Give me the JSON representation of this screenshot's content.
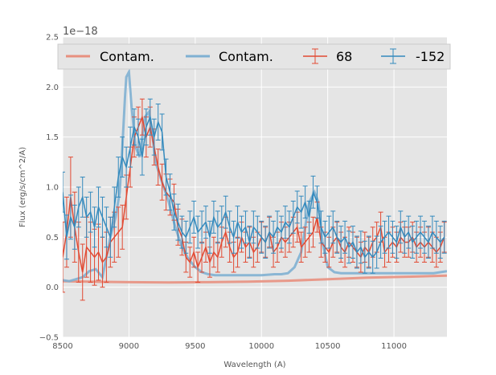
{
  "chart_data": {
    "type": "line",
    "title": "",
    "xlabel": "Wavelength (A)",
    "ylabel": "Flux (erg/s/cm^2/A)",
    "y_offset_label": "1e−18",
    "xlim": [
      8500,
      11400
    ],
    "ylim": [
      -0.5,
      2.5
    ],
    "x_ticks": [
      8500,
      9000,
      9500,
      10000,
      10500,
      11000
    ],
    "x_tick_labels": [
      "8500",
      "9000",
      "9500",
      "10000",
      "10500",
      "11000"
    ],
    "y_ticks": [
      -0.5,
      0.0,
      0.5,
      1.0,
      1.5,
      2.0,
      2.5
    ],
    "y_tick_labels": [
      "−0.5",
      "0.0",
      "0.5",
      "1.0",
      "1.5",
      "2.0",
      "2.5"
    ],
    "grid": true,
    "legend_position": "top",
    "colors": {
      "red": "#e24a33",
      "blue": "#348abd",
      "contam_red": "#e8907f",
      "contam_blue": "#7fb0d2",
      "plot_bg": "#e5e5e5"
    },
    "series": [
      {
        "name": "Contam.",
        "kind": "line",
        "color": "#e8907f",
        "x": [
          8500,
          8700,
          9000,
          9300,
          9600,
          9900,
          10200,
          10500,
          10800,
          11100,
          11400
        ],
        "y": [
          0.06,
          0.055,
          0.05,
          0.048,
          0.05,
          0.055,
          0.065,
          0.08,
          0.095,
          0.105,
          0.115
        ]
      },
      {
        "name": "Contam.",
        "kind": "line",
        "color": "#7fb0d2",
        "x": [
          8500,
          8550,
          8600,
          8650,
          8700,
          8750,
          8800,
          8830,
          8860,
          8900,
          8930,
          8950,
          8970,
          8980,
          9000,
          9020,
          9050,
          9080,
          9100,
          9120,
          9150,
          9170,
          9200,
          9250,
          9300,
          9350,
          9400,
          9450,
          9500,
          9550,
          9600,
          9650,
          9700,
          9800,
          9900,
          10000,
          10100,
          10150,
          10200,
          10250,
          10300,
          10330,
          10360,
          10400,
          10430,
          10460,
          10500,
          10550,
          10600,
          10700,
          10800,
          10900,
          11000,
          11100,
          11200,
          11300,
          11400
        ],
        "y": [
          0.07,
          0.06,
          0.08,
          0.1,
          0.16,
          0.18,
          0.1,
          0.3,
          0.5,
          0.7,
          0.95,
          1.4,
          1.9,
          2.1,
          2.15,
          1.8,
          1.4,
          1.3,
          1.5,
          1.7,
          1.75,
          1.6,
          1.25,
          1.05,
          0.85,
          0.6,
          0.4,
          0.28,
          0.2,
          0.15,
          0.13,
          0.12,
          0.12,
          0.12,
          0.12,
          0.12,
          0.13,
          0.13,
          0.14,
          0.2,
          0.35,
          0.6,
          0.85,
          0.95,
          0.85,
          0.45,
          0.2,
          0.15,
          0.14,
          0.14,
          0.14,
          0.14,
          0.14,
          0.14,
          0.14,
          0.14,
          0.16
        ]
      },
      {
        "name": "68",
        "kind": "errorbar",
        "color": "#e24a33",
        "x": [
          8500,
          8530,
          8560,
          8590,
          8620,
          8650,
          8680,
          8710,
          8740,
          8770,
          8800,
          8830,
          8860,
          8890,
          8920,
          8950,
          8980,
          9010,
          9040,
          9070,
          9100,
          9130,
          9160,
          9190,
          9220,
          9250,
          9280,
          9310,
          9340,
          9370,
          9400,
          9430,
          9460,
          9490,
          9520,
          9550,
          9580,
          9610,
          9640,
          9670,
          9700,
          9730,
          9760,
          9790,
          9820,
          9850,
          9880,
          9910,
          9940,
          9970,
          10000,
          10030,
          10060,
          10090,
          10120,
          10150,
          10180,
          10210,
          10240,
          10270,
          10300,
          10330,
          10360,
          10390,
          10420,
          10450,
          10480,
          10510,
          10540,
          10570,
          10600,
          10630,
          10660,
          10690,
          10720,
          10750,
          10780,
          10810,
          10840,
          10870,
          10900,
          10930,
          10960,
          10990,
          11020,
          11050,
          11080,
          11110,
          11140,
          11170,
          11200,
          11230,
          11260,
          11290,
          11320,
          11350,
          11380
        ],
        "y": [
          0.3,
          0.55,
          0.9,
          0.6,
          0.35,
          0.15,
          0.4,
          0.35,
          0.3,
          0.35,
          0.25,
          0.3,
          0.45,
          0.5,
          0.55,
          0.6,
          0.9,
          1.2,
          1.5,
          1.6,
          1.7,
          1.5,
          1.6,
          1.4,
          1.2,
          1.05,
          0.95,
          0.9,
          0.85,
          0.6,
          0.5,
          0.3,
          0.25,
          0.35,
          0.2,
          0.3,
          0.4,
          0.25,
          0.35,
          0.3,
          0.45,
          0.55,
          0.4,
          0.3,
          0.35,
          0.5,
          0.4,
          0.45,
          0.35,
          0.4,
          0.5,
          0.45,
          0.55,
          0.35,
          0.4,
          0.5,
          0.45,
          0.5,
          0.55,
          0.6,
          0.4,
          0.45,
          0.5,
          0.55,
          0.7,
          0.45,
          0.4,
          0.35,
          0.45,
          0.5,
          0.4,
          0.35,
          0.45,
          0.4,
          0.35,
          0.3,
          0.4,
          0.35,
          0.45,
          0.5,
          0.6,
          0.35,
          0.4,
          0.45,
          0.4,
          0.5,
          0.45,
          0.45,
          0.5,
          0.4,
          0.45,
          0.4,
          0.45,
          0.4,
          0.35,
          0.4,
          0.5
        ],
        "err": [
          0.35,
          0.35,
          0.4,
          0.35,
          0.3,
          0.28,
          0.3,
          0.3,
          0.28,
          0.28,
          0.25,
          0.25,
          0.25,
          0.25,
          0.25,
          0.22,
          0.22,
          0.2,
          0.2,
          0.2,
          0.18,
          0.2,
          0.2,
          0.18,
          0.18,
          0.18,
          0.18,
          0.18,
          0.18,
          0.18,
          0.18,
          0.15,
          0.15,
          0.15,
          0.15,
          0.15,
          0.15,
          0.15,
          0.15,
          0.15,
          0.15,
          0.15,
          0.15,
          0.15,
          0.15,
          0.15,
          0.15,
          0.15,
          0.15,
          0.15,
          0.15,
          0.15,
          0.15,
          0.15,
          0.15,
          0.15,
          0.15,
          0.15,
          0.15,
          0.15,
          0.15,
          0.15,
          0.15,
          0.15,
          0.15,
          0.15,
          0.15,
          0.15,
          0.15,
          0.15,
          0.15,
          0.15,
          0.15,
          0.15,
          0.15,
          0.15,
          0.15,
          0.15,
          0.15,
          0.15,
          0.15,
          0.15,
          0.15,
          0.15,
          0.15,
          0.15,
          0.15,
          0.15,
          0.15,
          0.15,
          0.15,
          0.15,
          0.15,
          0.15,
          0.15,
          0.15,
          0.15
        ]
      },
      {
        "name": "-152",
        "kind": "errorbar",
        "color": "#348abd",
        "x": [
          8500,
          8530,
          8560,
          8590,
          8620,
          8650,
          8680,
          8710,
          8740,
          8770,
          8800,
          8830,
          8860,
          8890,
          8920,
          8950,
          8980,
          9010,
          9040,
          9070,
          9100,
          9130,
          9160,
          9190,
          9220,
          9250,
          9280,
          9310,
          9340,
          9370,
          9400,
          9430,
          9460,
          9490,
          9520,
          9550,
          9580,
          9610,
          9640,
          9670,
          9700,
          9730,
          9760,
          9790,
          9820,
          9850,
          9880,
          9910,
          9940,
          9970,
          10000,
          10030,
          10060,
          10090,
          10120,
          10150,
          10180,
          10210,
          10240,
          10270,
          10300,
          10330,
          10360,
          10390,
          10420,
          10450,
          10480,
          10510,
          10540,
          10570,
          10600,
          10630,
          10660,
          10690,
          10720,
          10750,
          10780,
          10810,
          10840,
          10870,
          10900,
          10930,
          10960,
          10990,
          11020,
          11050,
          11080,
          11110,
          11140,
          11170,
          11200,
          11230,
          11260,
          11290,
          11320,
          11350,
          11380
        ],
        "y": [
          0.95,
          0.5,
          0.7,
          0.6,
          0.8,
          0.9,
          0.7,
          0.75,
          0.6,
          0.8,
          0.7,
          0.6,
          0.5,
          0.8,
          1.1,
          1.3,
          1.2,
          1.4,
          1.6,
          1.5,
          1.3,
          1.6,
          1.7,
          1.5,
          1.65,
          1.55,
          1.1,
          0.95,
          0.75,
          0.65,
          0.55,
          0.5,
          0.6,
          0.7,
          0.55,
          0.6,
          0.65,
          0.5,
          0.7,
          0.6,
          0.65,
          0.75,
          0.6,
          0.5,
          0.65,
          0.55,
          0.6,
          0.45,
          0.6,
          0.55,
          0.5,
          0.45,
          0.55,
          0.5,
          0.6,
          0.55,
          0.65,
          0.6,
          0.7,
          0.8,
          0.75,
          0.85,
          0.7,
          0.95,
          0.85,
          0.6,
          0.5,
          0.55,
          0.6,
          0.5,
          0.45,
          0.5,
          0.4,
          0.45,
          0.35,
          0.4,
          0.3,
          0.35,
          0.3,
          0.35,
          0.45,
          0.5,
          0.55,
          0.5,
          0.45,
          0.6,
          0.5,
          0.55,
          0.45,
          0.5,
          0.55,
          0.5,
          0.45,
          0.55,
          0.5,
          0.45,
          0.5
        ],
        "err": [
          0.2,
          0.22,
          0.22,
          0.22,
          0.2,
          0.2,
          0.2,
          0.2,
          0.2,
          0.2,
          0.2,
          0.2,
          0.2,
          0.2,
          0.2,
          0.2,
          0.2,
          0.2,
          0.18,
          0.18,
          0.18,
          0.18,
          0.18,
          0.18,
          0.18,
          0.18,
          0.18,
          0.18,
          0.18,
          0.18,
          0.16,
          0.16,
          0.16,
          0.16,
          0.16,
          0.16,
          0.16,
          0.16,
          0.16,
          0.16,
          0.16,
          0.16,
          0.16,
          0.16,
          0.16,
          0.16,
          0.16,
          0.16,
          0.16,
          0.16,
          0.16,
          0.16,
          0.16,
          0.16,
          0.16,
          0.16,
          0.16,
          0.16,
          0.16,
          0.16,
          0.16,
          0.16,
          0.16,
          0.16,
          0.16,
          0.16,
          0.16,
          0.16,
          0.16,
          0.16,
          0.16,
          0.16,
          0.16,
          0.16,
          0.16,
          0.16,
          0.16,
          0.16,
          0.16,
          0.16,
          0.16,
          0.16,
          0.16,
          0.16,
          0.16,
          0.16,
          0.16,
          0.16,
          0.16,
          0.16,
          0.16,
          0.16,
          0.16,
          0.16,
          0.16,
          0.16,
          0.16
        ]
      }
    ]
  }
}
